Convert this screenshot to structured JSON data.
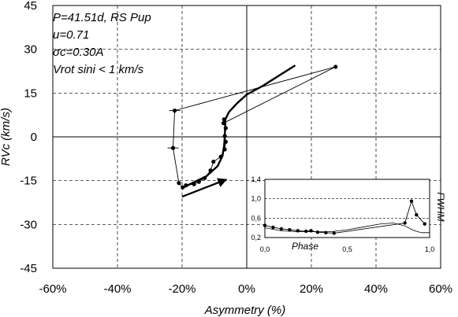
{
  "chart_data": [
    {
      "type": "scatter",
      "xlabel": "Asymmetry (%)",
      "ylabel": "RVc (km/s)",
      "xlim": [
        -60,
        60
      ],
      "ylim": [
        -45,
        45
      ],
      "x_ticks": [
        "-60%",
        "-40%",
        "-20%",
        "0%",
        "20%",
        "40%",
        "60%"
      ],
      "y_ticks": [
        "45",
        "30",
        "15",
        "0",
        "-15",
        "-30",
        "-45"
      ],
      "x_tick_values": [
        -60,
        -40,
        -20,
        0,
        20,
        40,
        60
      ],
      "y_tick_values": [
        45,
        30,
        15,
        0,
        -15,
        -30,
        -45
      ],
      "grid": "dashed",
      "annotations": [
        "P=41.51d, RS Pup",
        "u=0.71",
        "σc=0.30A",
        "Vrot sini < 1 km/s"
      ],
      "series": [
        {
          "style": "markers with thin line",
          "x": [
            -7.2,
            27.5,
            -22.3,
            -22.8,
            -21.0,
            -19.8,
            -18.8,
            -16.3,
            -14.8,
            -13.0,
            -11.2,
            -10.3,
            -8.0,
            -6.8,
            -6.5,
            -6.8,
            -6.5,
            -7.0
          ],
          "y": [
            4.7,
            24.0,
            9.0,
            -3.8,
            -15.8,
            -17.3,
            -16.6,
            -16.2,
            -15.4,
            -14.1,
            -11.5,
            -8.5,
            -6.8,
            -4.3,
            -1.7,
            0.3,
            3.0,
            6.0
          ]
        },
        {
          "style": "thick curve",
          "x": [
            -19.8,
            -12.5,
            -9.0,
            -7.5,
            -7.0,
            -6.8,
            -6.7,
            -6.6,
            -5.5,
            -3.0,
            0.0,
            5.0,
            10.0,
            15.0
          ],
          "y": [
            -17.4,
            -13.5,
            -10.0,
            -6.5,
            -3.0,
            0.0,
            3.0,
            6.0,
            8.5,
            11.5,
            14.5,
            17.5,
            21.0,
            24.5
          ]
        }
      ],
      "arrow": {
        "x": [
          -20.0,
          -6.0
        ],
        "y": [
          -20.5,
          -14.5
        ]
      }
    },
    {
      "type": "scatter",
      "xlabel": "Phase",
      "ylabel": "FWHM",
      "xlim": [
        0,
        1
      ],
      "ylim": [
        0.2,
        1.4
      ],
      "x_ticks": [
        "0,0",
        "0,5",
        "1,0"
      ],
      "y_ticks": [
        "1,4",
        "1,0",
        "0,6",
        "0,2"
      ],
      "x_tick_values": [
        0,
        0.5,
        1
      ],
      "y_tick_values": [
        1.4,
        1.0,
        0.6,
        0.2
      ],
      "series": [
        {
          "style": "markers with line",
          "x": [
            0.0,
            0.05,
            0.1,
            0.15,
            0.2,
            0.25,
            0.28,
            0.32,
            0.37,
            0.42,
            0.85,
            0.89,
            0.92,
            0.97
          ],
          "y": [
            0.45,
            0.41,
            0.38,
            0.36,
            0.34,
            0.33,
            0.34,
            0.31,
            0.3,
            0.29,
            0.5,
            0.95,
            0.67,
            0.48
          ]
        },
        {
          "style": "thin curve",
          "x": [
            0.0,
            0.1,
            0.2,
            0.3,
            0.4,
            0.5,
            0.6,
            0.7,
            0.78,
            0.85,
            0.9,
            0.95,
            1.0
          ],
          "y": [
            0.4,
            0.34,
            0.32,
            0.32,
            0.32,
            0.36,
            0.42,
            0.48,
            0.5,
            0.44,
            0.35,
            0.3,
            0.3
          ]
        }
      ]
    }
  ]
}
